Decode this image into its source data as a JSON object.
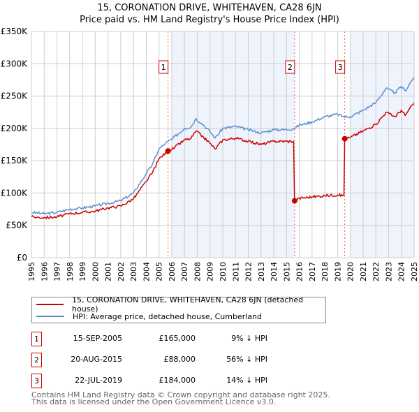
{
  "chart_data": {
    "type": "line",
    "title": "15, CORONATION DRIVE, WHITEHAVEN, CA28 6JN",
    "subtitle": "Price paid vs. HM Land Registry's House Price Index (HPI)",
    "xlim": [
      1995,
      2025
    ],
    "ylim": [
      0,
      350000
    ],
    "yticks": [
      {
        "v": 0,
        "label": "£0"
      },
      {
        "v": 50000,
        "label": "£50K"
      },
      {
        "v": 100000,
        "label": "£100K"
      },
      {
        "v": 150000,
        "label": "£150K"
      },
      {
        "v": 200000,
        "label": "£200K"
      },
      {
        "v": 250000,
        "label": "£250K"
      },
      {
        "v": 300000,
        "label": "£300K"
      },
      {
        "v": 350000,
        "label": "£350K"
      }
    ],
    "xticks": [
      "1995",
      "1996",
      "1997",
      "1998",
      "1999",
      "2000",
      "2001",
      "2002",
      "2003",
      "2004",
      "2005",
      "2006",
      "2007",
      "2008",
      "2009",
      "2010",
      "2011",
      "2012",
      "2013",
      "2014",
      "2015",
      "2016",
      "2017",
      "2018",
      "2019",
      "2020",
      "2021",
      "2022",
      "2023",
      "2024",
      "2025"
    ],
    "grid": true,
    "shaded_periods": [
      [
        2006.0,
        2015.6
      ],
      [
        2020.0,
        2025.0
      ]
    ],
    "series": [
      {
        "name": "15, CORONATION DRIVE, WHITEHAVEN, CA28 6JN (detached house)",
        "color": "#cc0000",
        "x": [
          1995,
          1996,
          1997,
          1998,
          1999,
          2000,
          2001,
          2002,
          2003,
          2004,
          2004.5,
          2005,
          2005.7,
          2006,
          2007,
          2007.5,
          2007.9,
          2008.5,
          2009,
          2009.4,
          2010,
          2011,
          2012,
          2013,
          2014,
          2015,
          2015.55,
          2015.63,
          2016,
          2017,
          2018,
          2019,
          2019.5,
          2019.56,
          2020,
          2021,
          2022,
          2022.8,
          2023.5,
          2024,
          2024.3,
          2025
        ],
        "y": [
          63000,
          62000,
          63000,
          68000,
          70000,
          72000,
          77000,
          80000,
          91000,
          118000,
          132000,
          153000,
          165000,
          167000,
          182000,
          184000,
          196000,
          186000,
          177000,
          168000,
          182000,
          185000,
          180000,
          175000,
          180000,
          180000,
          180000,
          88000,
          92000,
          94000,
          96000,
          97000,
          96000,
          184000,
          186000,
          196000,
          206000,
          225000,
          218000,
          228000,
          220000,
          240000
        ]
      },
      {
        "name": "HPI: Average price, detached house, Cumberland",
        "color": "#5b8fd0",
        "x": [
          1995,
          1996,
          1997,
          1998,
          1999,
          2000,
          2001,
          2002,
          2003,
          2004,
          2004.5,
          2005,
          2005.7,
          2006,
          2007,
          2007.5,
          2007.9,
          2008.5,
          2009,
          2009.4,
          2010,
          2011,
          2012,
          2013,
          2014,
          2015,
          2015.6,
          2016,
          2017,
          2018,
          2019,
          2019.5,
          2020,
          2021,
          2022,
          2022.8,
          2023.5,
          2024,
          2024.3,
          2025
        ],
        "y": [
          70000,
          68000,
          70000,
          75000,
          77000,
          80000,
          84000,
          88000,
          100000,
          130000,
          145000,
          168000,
          180000,
          183000,
          200000,
          202000,
          215000,
          205000,
          195000,
          185000,
          200000,
          203000,
          198000,
          193000,
          198000,
          198000,
          200000,
          205000,
          210000,
          218000,
          222000,
          218000,
          218000,
          228000,
          240000,
          262000,
          255000,
          265000,
          258000,
          280000
        ]
      }
    ],
    "sales": [
      {
        "id": "1",
        "x": 2005.71,
        "y": 165000
      },
      {
        "id": "2",
        "x": 2015.63,
        "y": 88000
      },
      {
        "id": "3",
        "x": 2019.56,
        "y": 184000
      }
    ]
  },
  "legend": {
    "items": [
      "15, CORONATION DRIVE, WHITEHAVEN, CA28 6JN (detached house)",
      "HPI: Average price, detached house, Cumberland"
    ]
  },
  "table": [
    {
      "id": "1",
      "date": "15-SEP-2005",
      "price": "£165,000",
      "hpi": "9% ↓ HPI"
    },
    {
      "id": "2",
      "date": "20-AUG-2015",
      "price": "£88,000",
      "hpi": "56% ↓ HPI"
    },
    {
      "id": "3",
      "date": "22-JUL-2019",
      "price": "£184,000",
      "hpi": "14% ↓ HPI"
    }
  ],
  "footer": {
    "line1": "Contains HM Land Registry data © Crown copyright and database right 2025.",
    "line2": "This data is licensed under the Open Government Licence v3.0."
  }
}
